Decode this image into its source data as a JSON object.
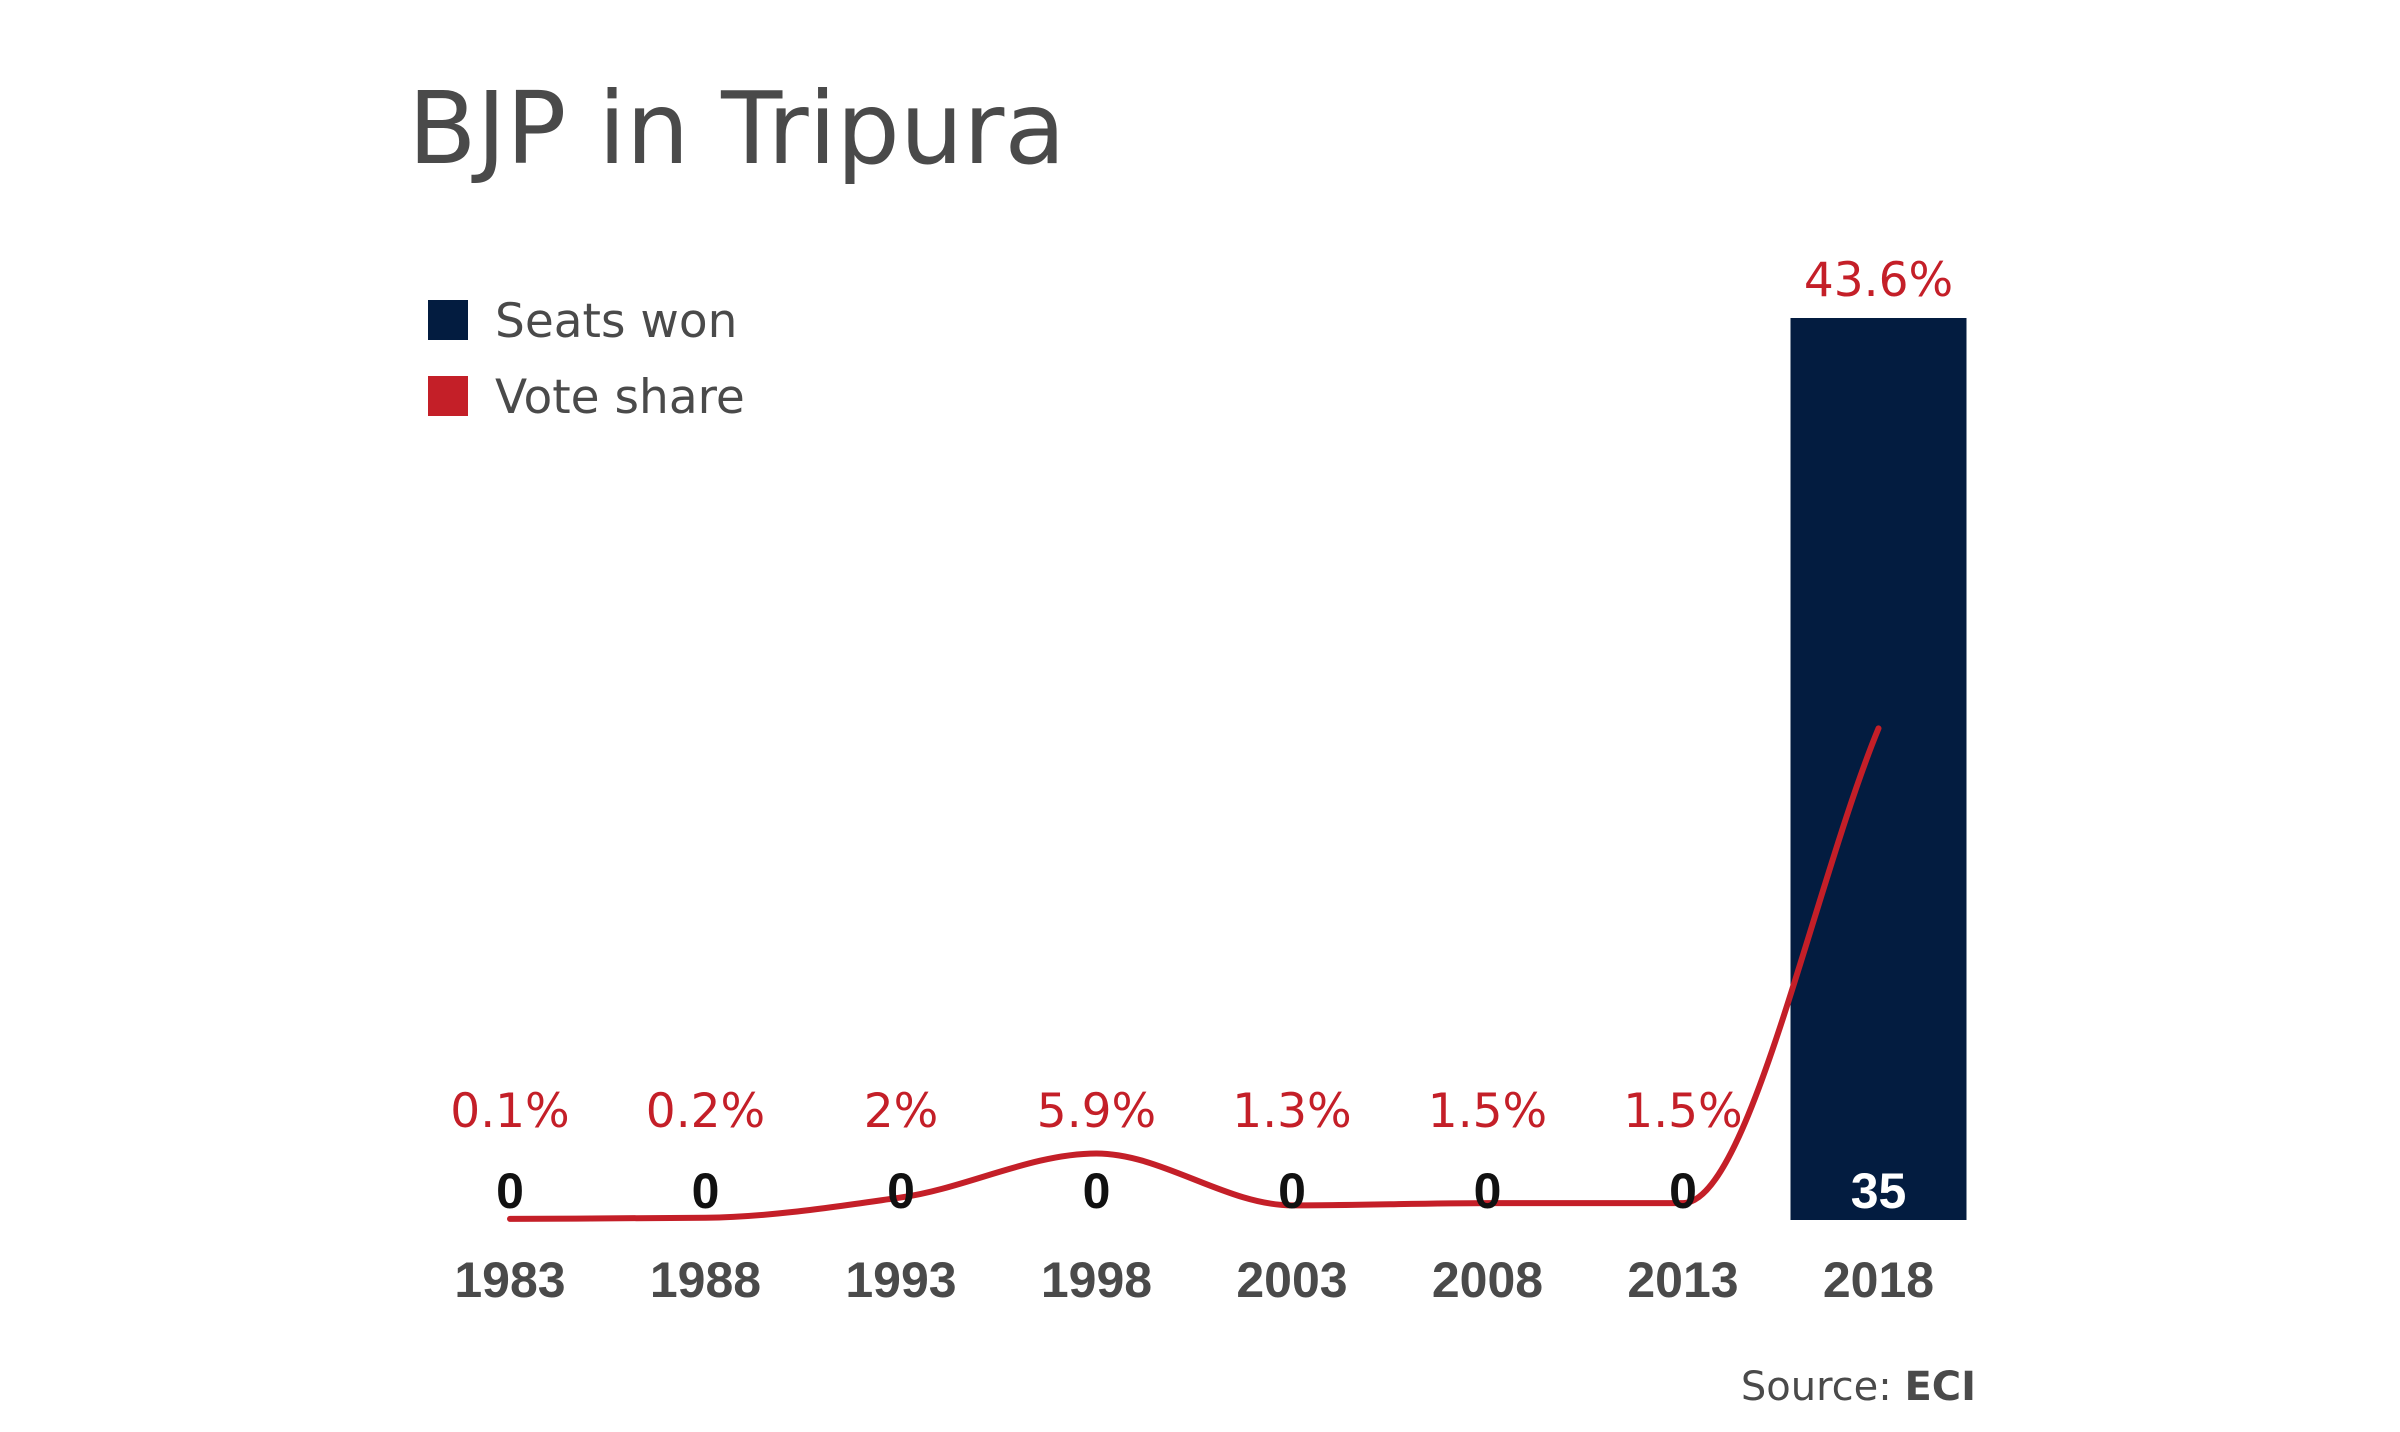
{
  "colors": {
    "seats": "#031c40",
    "vote_share": "#c41f28",
    "text": "#4a4a4a"
  },
  "chart_data": {
    "type": "bar",
    "title": "BJP in Tripura",
    "categories": [
      "1983",
      "1988",
      "1993",
      "1998",
      "2003",
      "2008",
      "2013",
      "2018"
    ],
    "series": [
      {
        "name": "Seats won",
        "type": "bar",
        "values": [
          0,
          0,
          0,
          0,
          0,
          0,
          0,
          35
        ],
        "labels": [
          "0",
          "0",
          "0",
          "0",
          "0",
          "0",
          "0",
          "35"
        ]
      },
      {
        "name": "Vote share",
        "type": "line",
        "smooth": true,
        "unit": "%",
        "values": [
          0.1,
          0.2,
          2,
          5.9,
          1.3,
          1.5,
          1.5,
          43.6
        ],
        "labels": [
          "0.1%",
          "0.2%",
          "2%",
          "5.9%",
          "1.3%",
          "1.5%",
          "1.5%",
          "43.6%"
        ]
      }
    ],
    "legend": {
      "position": "top-left",
      "items": [
        "Seats won",
        "Vote share"
      ]
    },
    "grid": false,
    "seats_ylim": [
      0,
      35
    ],
    "vote_share_ylim": [
      0,
      80
    ]
  },
  "source": {
    "prefix": "Source: ",
    "name": "ECI"
  }
}
